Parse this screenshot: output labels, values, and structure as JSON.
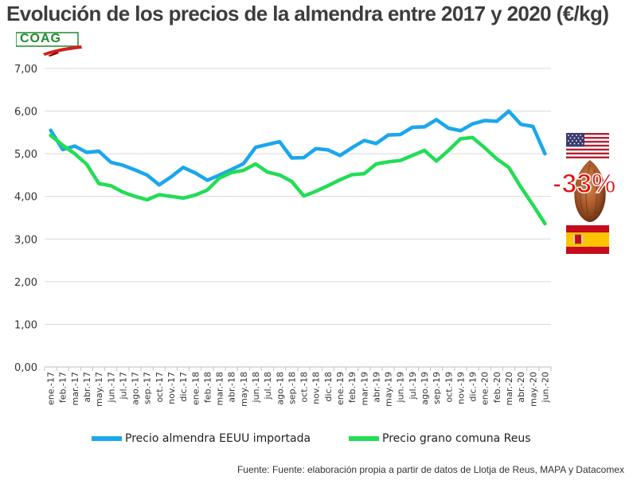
{
  "title": "Evolución de los precios de la almendra entre 2017 y 2020 (€/kg)",
  "logo": "COAG",
  "source": "Fuente: Fuente: elaboración propia a partir de datos de Llotja de Reus, MAPA y Datacomex",
  "annotation": "-33%",
  "icons": {
    "us_flag": "us-flag-icon",
    "almond": "almond-icon",
    "spain_flag": "spain-flag-icon"
  },
  "chart_data": {
    "type": "line",
    "title": "Evolución de los precios de la almendra entre 2017 y 2020 (€/kg)",
    "ylim": [
      0,
      7
    ],
    "yticks": [
      "0,00",
      "1,00",
      "2,00",
      "3,00",
      "4,00",
      "5,00",
      "6,00",
      "7,00"
    ],
    "grid": true,
    "legend_position": "bottom",
    "categories": [
      "ene.-17",
      "feb.-17",
      "mar.-17",
      "abr.-17",
      "may.-17",
      "jun.-17",
      "jul.-17",
      "ago.-17",
      "sep.-17",
      "oct.-17",
      "nov.-17",
      "dic.-17",
      "ene.-18",
      "feb.-18",
      "mar.-18",
      "abr.-18",
      "may.-18",
      "jun.-18",
      "jul.-18",
      "ago.-18",
      "sep.-18",
      "oct.-18",
      "nov.-18",
      "dic.-18",
      "ene.-19",
      "feb.-19",
      "mar.-19",
      "abr.-19",
      "may.-19",
      "jun.-19",
      "jul.-19",
      "ago.-19",
      "sep.-19",
      "oct.-19",
      "nov.-19",
      "dic.-19",
      "ene.-20",
      "feb.-20",
      "mar.-20",
      "abr.-20",
      "may.-20",
      "jun.-20"
    ],
    "series": [
      {
        "name": "Precio almendra EEUU importada",
        "color": "#1aa7ec",
        "values": [
          5.55,
          5.1,
          5.18,
          5.03,
          5.06,
          4.8,
          4.73,
          4.62,
          4.5,
          4.27,
          4.46,
          4.68,
          4.55,
          4.38,
          4.5,
          4.63,
          4.77,
          5.15,
          5.22,
          5.28,
          4.9,
          4.91,
          5.12,
          5.09,
          4.96,
          5.14,
          5.31,
          5.24,
          5.44,
          5.45,
          5.62,
          5.63,
          5.8,
          5.6,
          5.54,
          5.7,
          5.78,
          5.76,
          6.0,
          5.69,
          5.64,
          5.0
        ]
      },
      {
        "name": "Precio grano comuna Reus",
        "color": "#22dd55",
        "values": [
          5.43,
          5.2,
          5.0,
          4.75,
          4.3,
          4.25,
          4.1,
          4.0,
          3.92,
          4.04,
          4.0,
          3.96,
          4.03,
          4.15,
          4.43,
          4.56,
          4.61,
          4.76,
          4.57,
          4.5,
          4.35,
          4.01,
          4.12,
          4.25,
          4.39,
          4.51,
          4.53,
          4.76,
          4.81,
          4.84,
          4.96,
          5.08,
          4.83,
          5.08,
          5.35,
          5.38,
          5.14,
          4.88,
          4.68,
          4.22,
          3.8,
          3.36
        ]
      }
    ]
  }
}
